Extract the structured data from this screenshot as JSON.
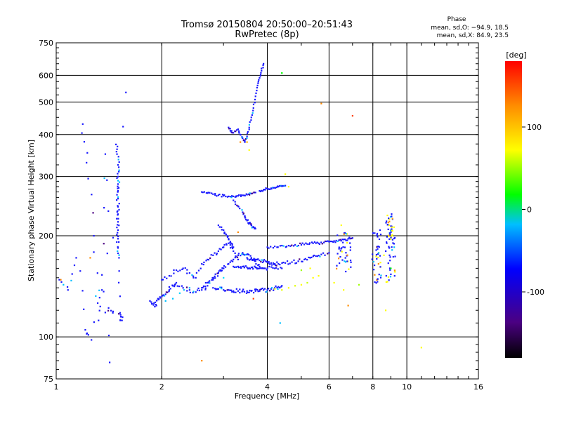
{
  "chart_data": {
    "type": "scatter",
    "title": "Tromsø 20150804 20:50:00–20:51:43",
    "subtitle": "RwPretec (8p)",
    "xlabel": "Frequency [MHz]",
    "ylabel": "Stationary phase Virtual Height [km]",
    "x_scale": "log",
    "y_scale": "log",
    "xlim": [
      1,
      16
    ],
    "ylim": [
      75,
      750
    ],
    "x_ticks": [
      1,
      2,
      4,
      6,
      8,
      10,
      16
    ],
    "y_ticks": [
      75,
      100,
      200,
      300,
      400,
      500,
      600,
      750
    ],
    "grid": true,
    "phase_info": {
      "heading": "Phase",
      "line_o": "mean, sd,O: −94.9, 18.5",
      "line_x": "mean, sd,X:  84.9, 23.5"
    },
    "colorbar": {
      "label": "[deg]",
      "range": [
        -180,
        180
      ],
      "ticks": [
        100,
        0,
        -100
      ],
      "colors": [
        "#000000",
        "#4b0082",
        "#0000ff",
        "#00bfff",
        "#00ff00",
        "#ffff00",
        "#ff8c00",
        "#ff0000"
      ]
    },
    "point_color_default": "#1a1aff",
    "traces": [
      {
        "x": [
          1.02,
          1.08,
          1.14,
          1.21,
          1.26,
          1.35,
          1.42,
          1.58
        ],
        "y": [
          148,
          138,
          172,
          105,
          98,
          153,
          84,
          534
        ]
      },
      {
        "x": [
          1.19,
          1.22,
          1.28,
          1.32,
          1.35,
          1.38,
          1.41,
          1.45
        ],
        "y": [
          430,
          330,
          200,
          112,
          138,
          350,
          122,
          118
        ]
      },
      {
        "x": [
          1.48,
          1.49,
          1.5,
          1.5,
          1.5,
          1.5,
          1.5,
          1.5,
          1.5,
          1.5,
          1.5,
          1.5,
          1.5,
          1.51,
          1.52,
          1.53,
          1.54
        ],
        "y": [
          374,
          350,
          325,
          300,
          285,
          272,
          258,
          244,
          232,
          220,
          208,
          196,
          184,
          172,
          118,
          115,
          112
        ]
      },
      {
        "x": [
          1.85,
          1.9,
          1.93,
          1.95,
          2.0,
          2.05,
          2.1,
          2.15,
          2.2,
          2.3,
          2.4,
          2.5,
          2.6,
          2.7,
          2.8,
          2.9,
          3.0
        ],
        "y": [
          128,
          126,
          124,
          130,
          132,
          134,
          138,
          142,
          145,
          140,
          138,
          136,
          140,
          145,
          150,
          155,
          160
        ]
      },
      {
        "x": [
          2.0,
          2.1,
          2.2,
          2.3,
          2.4,
          2.5,
          2.6,
          2.7,
          2.8,
          2.9,
          3.0,
          3.1,
          3.2,
          3.3
        ],
        "y": [
          148,
          152,
          158,
          160,
          155,
          150,
          165,
          170,
          175,
          180,
          185,
          190,
          180,
          170
        ]
      },
      {
        "x": [
          2.8,
          2.9,
          3.0,
          3.1,
          3.2,
          3.3,
          3.4,
          3.5,
          3.6,
          3.7,
          3.8,
          3.9,
          4.0,
          4.1,
          4.2,
          4.3,
          4.4
        ],
        "y": [
          140,
          139,
          138,
          138,
          137,
          137,
          137,
          137,
          137,
          137,
          137,
          138,
          138,
          139,
          140,
          141,
          142
        ]
      },
      {
        "x": [
          2.6,
          2.7,
          2.8,
          2.9,
          3.0,
          3.1,
          3.2,
          3.3,
          3.4,
          3.5,
          3.6,
          3.7,
          3.8
        ],
        "y": [
          138,
          142,
          148,
          155,
          160,
          165,
          170,
          175,
          178,
          176,
          172,
          168,
          162
        ]
      },
      {
        "x": [
          3.5,
          3.6,
          3.7,
          3.8,
          3.9,
          4.0,
          4.1,
          4.2,
          4.3,
          4.5,
          4.7,
          4.9,
          5.1,
          5.3,
          5.5,
          5.7,
          6.0
        ],
        "y": [
          172,
          171,
          170,
          169,
          168,
          167,
          166,
          165,
          165,
          166,
          167,
          168,
          170,
          172,
          174,
          176,
          178
        ]
      },
      {
        "x": [
          3.2,
          3.3,
          3.4,
          3.5,
          3.6,
          3.7,
          3.8,
          3.9,
          4.0,
          4.2,
          4.4
        ],
        "y": [
          162,
          162,
          162,
          161,
          161,
          161,
          160,
          160,
          160,
          160,
          160
        ]
      },
      {
        "x": [
          4.0,
          4.2,
          4.4,
          4.6,
          4.8,
          5.0,
          5.2,
          5.4,
          5.6,
          5.8,
          6.0,
          6.2,
          6.4,
          6.6,
          6.8,
          7.0
        ],
        "y": [
          185,
          186,
          187,
          187,
          188,
          188,
          189,
          190,
          190,
          191,
          192,
          193,
          194,
          195,
          196,
          197
        ]
      },
      {
        "x": [
          2.6,
          2.7,
          2.8,
          2.9,
          3.0,
          3.1,
          3.2,
          3.3,
          3.4,
          3.5,
          3.6,
          3.7
        ],
        "y": [
          270,
          268,
          266,
          264,
          263,
          262,
          262,
          263,
          264,
          265,
          267,
          269
        ]
      },
      {
        "x": [
          3.8,
          3.9,
          4.0,
          4.1,
          4.2,
          4.3,
          4.4,
          4.5
        ],
        "y": [
          272,
          274,
          276,
          277,
          278,
          280,
          281,
          282
        ]
      },
      {
        "x": [
          3.1,
          3.15,
          3.2,
          3.3,
          3.35,
          3.4,
          3.45,
          3.5,
          3.55,
          3.6,
          3.65,
          3.7,
          3.75,
          3.8,
          3.85,
          3.9
        ],
        "y": [
          420,
          410,
          405,
          415,
          400,
          390,
          380,
          395,
          420,
          450,
          480,
          520,
          560,
          590,
          620,
          650
        ]
      },
      {
        "x": [
          3.2,
          3.3,
          3.4,
          3.45,
          3.5,
          3.55,
          3.6,
          3.65,
          3.7
        ],
        "y": [
          255,
          245,
          235,
          228,
          222,
          218,
          215,
          212,
          210
        ]
      },
      {
        "x": [
          2.9,
          3.0,
          3.05,
          3.1,
          3.15,
          3.2
        ],
        "y": [
          215,
          208,
          202,
          196,
          190,
          185
        ]
      }
    ],
    "colored_points": [
      {
        "x": 4.6,
        "y": 140,
        "color": "#ffff00"
      },
      {
        "x": 4.8,
        "y": 142,
        "color": "#e0ff00"
      },
      {
        "x": 5.0,
        "y": 143,
        "color": "#ffff00"
      },
      {
        "x": 5.2,
        "y": 145,
        "color": "#c8ff00"
      },
      {
        "x": 5.4,
        "y": 150,
        "color": "#ffff00"
      },
      {
        "x": 5.6,
        "y": 152,
        "color": "#ffff00"
      },
      {
        "x": 4.2,
        "y": 139,
        "color": "#ffff00"
      },
      {
        "x": 4.4,
        "y": 138,
        "color": "#e6ff00"
      },
      {
        "x": 5.0,
        "y": 158,
        "color": "#9dff00"
      },
      {
        "x": 5.3,
        "y": 160,
        "color": "#ffff00"
      },
      {
        "x": 2.05,
        "y": 128,
        "color": "#00bfff"
      },
      {
        "x": 2.15,
        "y": 130,
        "color": "#00c8ff"
      },
      {
        "x": 2.25,
        "y": 135,
        "color": "#00d0ff"
      },
      {
        "x": 2.4,
        "y": 140,
        "color": "#00bfff"
      },
      {
        "x": 3.0,
        "y": 150,
        "color": "#00e0ff"
      },
      {
        "x": 3.3,
        "y": 205,
        "color": "#ff8c00"
      },
      {
        "x": 3.5,
        "y": 380,
        "color": "#ffb000"
      },
      {
        "x": 3.55,
        "y": 360,
        "color": "#ffff00"
      },
      {
        "x": 3.35,
        "y": 380,
        "color": "#ff8c00"
      },
      {
        "x": 5.7,
        "y": 495,
        "color": "#ff8c00"
      },
      {
        "x": 7.0,
        "y": 455,
        "color": "#ff4000"
      },
      {
        "x": 4.4,
        "y": 610,
        "color": "#00ff00"
      },
      {
        "x": 4.5,
        "y": 305,
        "color": "#ffff00"
      },
      {
        "x": 4.6,
        "y": 280,
        "color": "#ffff00"
      },
      {
        "x": 2.6,
        "y": 85,
        "color": "#ff8c00"
      },
      {
        "x": 11.0,
        "y": 93,
        "color": "#ffff00"
      },
      {
        "x": 1.03,
        "y": 148,
        "color": "#ff8c00"
      },
      {
        "x": 1.25,
        "y": 172,
        "color": "#ff8c00"
      },
      {
        "x": 3.65,
        "y": 130,
        "color": "#ff4000"
      },
      {
        "x": 4.35,
        "y": 110,
        "color": "#00bfff"
      },
      {
        "x": 6.8,
        "y": 124,
        "color": "#ff8c00"
      },
      {
        "x": 6.5,
        "y": 215,
        "color": "#ffff00"
      },
      {
        "x": 7.3,
        "y": 143,
        "color": "#9dff00"
      },
      {
        "x": 8.7,
        "y": 120,
        "color": "#ffff00"
      },
      {
        "x": 8.9,
        "y": 215,
        "color": "#ffff00"
      },
      {
        "x": 9.1,
        "y": 225,
        "color": "#ffb000"
      },
      {
        "x": 8.3,
        "y": 165,
        "color": "#ff8c00"
      },
      {
        "x": 8.6,
        "y": 175,
        "color": "#ffff00"
      },
      {
        "x": 9.0,
        "y": 160,
        "color": "#00ff00"
      },
      {
        "x": 9.2,
        "y": 185,
        "color": "#00bfff"
      },
      {
        "x": 8.8,
        "y": 230,
        "color": "#ffff00"
      },
      {
        "x": 6.2,
        "y": 145,
        "color": "#ffff00"
      },
      {
        "x": 6.6,
        "y": 138,
        "color": "#ffff00"
      }
    ],
    "clusters": [
      {
        "x": 6.6,
        "y": 180,
        "spread_x": 0.35,
        "spread_y": 25,
        "n": 40
      },
      {
        "x": 8.2,
        "y": 175,
        "spread_x": 0.25,
        "spread_y": 35,
        "n": 40
      },
      {
        "x": 9.0,
        "y": 185,
        "spread_x": 0.3,
        "spread_y": 40,
        "n": 45
      },
      {
        "x": 8.9,
        "y": 210,
        "spread_x": 0.2,
        "spread_y": 25,
        "n": 20
      }
    ]
  }
}
